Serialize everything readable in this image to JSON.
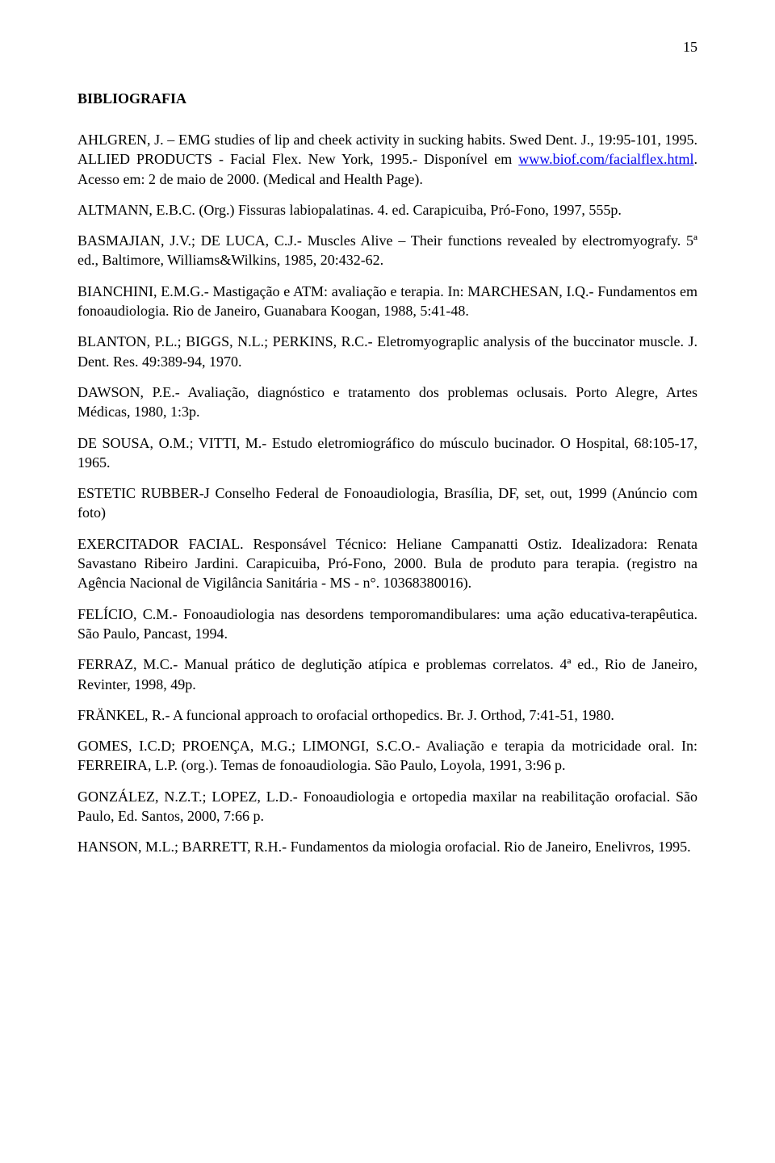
{
  "page_number": "15",
  "heading": "BIBLIOGRAFIA",
  "link_color": "#0000ee",
  "text_color": "#000000",
  "background_color": "#ffffff",
  "entries": [
    {
      "pre": "AHLGREN, J. – EMG studies of lip and cheek activity in sucking habits. Swed Dent. J., 19:95-101, 1995. ALLIED PRODUCTS - Facial Flex. New York, 1995.- Disponível em ",
      "link": "www.biof.com/facialflex.html",
      "post": ". Acesso em: 2 de maio de 2000. (Medical and Health Page)."
    },
    {
      "text": "ALTMANN, E.B.C. (Org.) Fissuras labiopalatinas. 4. ed. Carapicuiba, Pró-Fono, 1997, 555p."
    },
    {
      "text": "BASMAJIAN, J.V.; DE LUCA, C.J.- Muscles Alive – Their functions revealed by electromyografy. 5ª ed., Baltimore, Williams&Wilkins, 1985, 20:432-62."
    },
    {
      "text": "BIANCHINI, E.M.G.- Mastigação e ATM: avaliação e terapia. In: MARCHESAN, I.Q.- Fundamentos em fonoaudiologia. Rio de Janeiro, Guanabara Koogan, 1988, 5:41-48."
    },
    {
      "text": "BLANTON, P.L.; BIGGS, N.L.; PERKINS, R.C.- Eletromyograplic analysis of the buccinator muscle. J. Dent. Res. 49:389-94, 1970."
    },
    {
      "text": "DAWSON, P.E.- Avaliação, diagnóstico e tratamento dos problemas oclusais. Porto Alegre, Artes Médicas, 1980, 1:3p."
    },
    {
      "text": "DE SOUSA, O.M.; VITTI, M.- Estudo eletromiográfico do músculo bucinador. O Hospital, 68:105-17, 1965."
    },
    {
      "text": "ESTETIC RUBBER-J Conselho Federal de Fonoaudiologia, Brasília, DF, set, out, 1999 (Anúncio com foto)"
    },
    {
      "text": "EXERCITADOR FACIAL. Responsável Técnico: Heliane Campanatti Ostiz. Idealizadora: Renata Savastano Ribeiro Jardini. Carapicuiba, Pró-Fono, 2000. Bula de produto para terapia. (registro na Agência Nacional de Vigilância Sanitária - MS - n°. 10368380016)."
    },
    {
      "text": "FELÍCIO, C.M.- Fonoaudiologia nas desordens temporomandibulares: uma ação educativa-terapêutica. São Paulo, Pancast, 1994."
    },
    {
      "text": "FERRAZ, M.C.- Manual prático de deglutição atípica e problemas correlatos. 4ª ed., Rio de Janeiro, Revinter, 1998, 49p."
    },
    {
      "text": "FRÄNKEL, R.- A funcional approach to orofacial orthopedics. Br. J. Orthod, 7:41-51, 1980."
    },
    {
      "text": "GOMES, I.C.D; PROENÇA, M.G.; LIMONGI, S.C.O.- Avaliação e terapia da motricidade oral. In: FERREIRA, L.P. (org.). Temas de fonoaudiologia. São Paulo, Loyola, 1991, 3:96 p."
    },
    {
      "text": "GONZÁLEZ, N.Z.T.; LOPEZ, L.D.- Fonoaudiologia e ortopedia maxilar na reabilitação orofacial. São Paulo, Ed. Santos, 2000, 7:66 p."
    },
    {
      "text": "HANSON, M.L.; BARRETT, R.H.- Fundamentos da miologia orofacial. Rio de Janeiro, Enelivros, 1995."
    }
  ]
}
